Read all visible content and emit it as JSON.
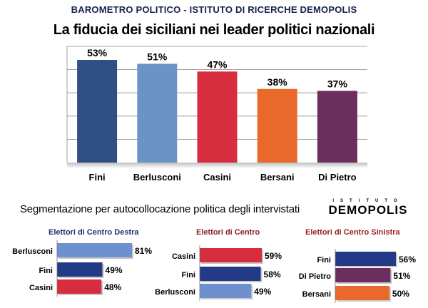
{
  "header": "BAROMETRO POLITICO  -  ISTITUTO DI RICERCHE DEMOPOLIS",
  "title": "La fiducia dei siciliani nei leader politici nazionali",
  "section_title": "Segmentazione per autocollocazione politica degli intervistati",
  "logo": {
    "small": "ISTITUTO",
    "big": "DEMOPOLIS"
  },
  "chart_data": [
    {
      "type": "bar",
      "title": "La fiducia dei siciliani nei leader politici nazionali",
      "categories": [
        "Fini",
        "Berlusconi",
        "Casini",
        "Bersani",
        "Di Pietro"
      ],
      "values": [
        53,
        51,
        47,
        38,
        37
      ],
      "labels": [
        "53%",
        "51%",
        "47%",
        "38%",
        "37%"
      ],
      "colors": [
        "#2f4f85",
        "#6b94c6",
        "#d62e3e",
        "#e8692a",
        "#6b2e5f"
      ],
      "ylim": [
        0,
        60
      ],
      "grid": true
    },
    {
      "type": "bar",
      "orientation": "horizontal",
      "title": "Elettori di Centro Destra",
      "title_color": "#1f2f6b",
      "categories": [
        "Berlusconi",
        "Fini",
        "Casini"
      ],
      "values": [
        81,
        49,
        48
      ],
      "labels": [
        "81%",
        "49%",
        "48%"
      ],
      "colors": [
        "#6f90cf",
        "#233a86",
        "#d62e3e"
      ]
    },
    {
      "type": "bar",
      "orientation": "horizontal",
      "title": "Elettori di Centro",
      "title_color": "#8a1c22",
      "categories": [
        "Casini",
        "Fini",
        "Berlusconi"
      ],
      "values": [
        59,
        58,
        49
      ],
      "labels": [
        "59%",
        "58%",
        "49%"
      ],
      "colors": [
        "#d62e3e",
        "#233a86",
        "#6f90cf"
      ]
    },
    {
      "type": "bar",
      "orientation": "horizontal",
      "title": "Elettori di Centro Sinistra",
      "title_color": "#9a2320",
      "categories": [
        "Fini",
        "Di Pietro",
        "Bersani"
      ],
      "values": [
        56,
        51,
        50
      ],
      "labels": [
        "56%",
        "51%",
        "50%"
      ],
      "colors": [
        "#233a86",
        "#6b2e5f",
        "#e8692a"
      ]
    }
  ]
}
